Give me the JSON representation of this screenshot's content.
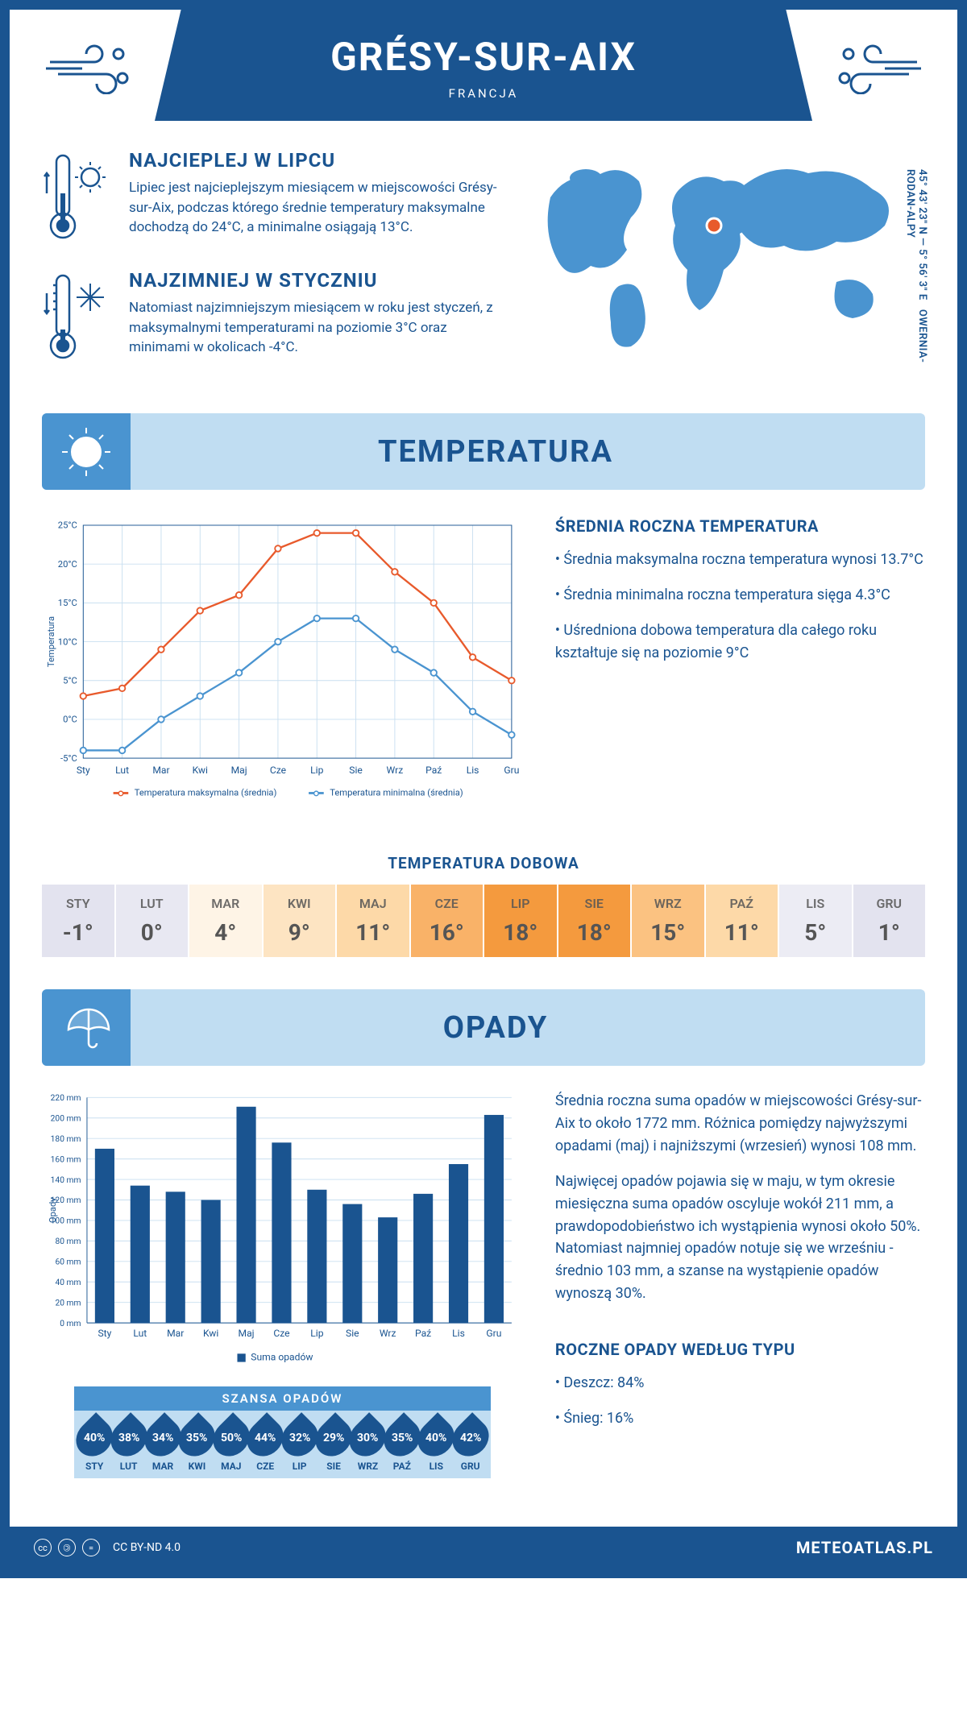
{
  "header": {
    "city": "GRÉSY-SUR-AIX",
    "country": "FRANCJA"
  },
  "coords": {
    "lat": "45° 43' 23\" N",
    "lon": "5° 56' 3\" E",
    "region": "OWERNIA-RODAN-ALPY"
  },
  "intro": {
    "hot": {
      "title": "NAJCIEPLEJ W LIPCU",
      "text": "Lipiec jest najcieplejszym miesiącem w miejscowości Grésy-sur-Aix, podczas którego średnie temperatury maksymalne dochodzą do 24°C, a minimalne osiągają 13°C."
    },
    "cold": {
      "title": "NAJZIMNIEJ W STYCZNIU",
      "text": "Natomiast najzimniejszym miesiącem w roku jest styczeń, z maksymalnymi temperaturami na poziomie 3°C oraz minimami w okolicach -4°C."
    }
  },
  "sections": {
    "temperature": "TEMPERATURA",
    "precip": "OPADY"
  },
  "temp_chart": {
    "type": "line",
    "months": [
      "Sty",
      "Lut",
      "Mar",
      "Kwi",
      "Maj",
      "Cze",
      "Lip",
      "Sie",
      "Wrz",
      "Paź",
      "Lis",
      "Gru"
    ],
    "tmax": [
      3,
      4,
      9,
      14,
      16,
      22,
      24,
      24,
      19,
      15,
      8,
      5
    ],
    "tmin": [
      -4,
      -4,
      0,
      3,
      6,
      10,
      13,
      13,
      9,
      6,
      1,
      -2
    ],
    "tmax_color": "#e85a2c",
    "tmin_color": "#4a94d0",
    "grid_color": "#c9dff0",
    "axis_color": "#1a5490",
    "ylabel": "Temperatura",
    "ylim": [
      -5,
      25
    ],
    "ytick_step": 5,
    "legend_max": "Temperatura maksymalna (średnia)",
    "legend_min": "Temperatura minimalna (średnia)",
    "title_fontsize": 12
  },
  "temp_summary": {
    "title": "ŚREDNIA ROCZNA TEMPERATURA",
    "lines": [
      "Średnia maksymalna roczna temperatura wynosi 13.7°C",
      "Średnia minimalna roczna temperatura sięga 4.3°C",
      "Uśredniona dobowa temperatura dla całego roku kształtuje się na poziomie 9°C"
    ]
  },
  "daily_temp": {
    "title": "TEMPERATURA DOBOWA",
    "months": [
      "STY",
      "LUT",
      "MAR",
      "KWI",
      "MAJ",
      "CZE",
      "LIP",
      "SIE",
      "WRZ",
      "PAŹ",
      "LIS",
      "GRU"
    ],
    "values": [
      "-1°",
      "0°",
      "4°",
      "9°",
      "11°",
      "16°",
      "18°",
      "18°",
      "15°",
      "11°",
      "5°",
      "1°"
    ],
    "bg_colors": [
      "#e3e3ef",
      "#e8e8f2",
      "#fef4e6",
      "#fde4c2",
      "#fdd9a8",
      "#f9b268",
      "#f49a3e",
      "#f49a3e",
      "#fbc281",
      "#fdd9a8",
      "#ececf4",
      "#e3e3ef"
    ],
    "text_color": "#555"
  },
  "precip_chart": {
    "type": "bar",
    "months": [
      "Sty",
      "Lut",
      "Mar",
      "Kwi",
      "Maj",
      "Cze",
      "Lip",
      "Sie",
      "Wrz",
      "Paź",
      "Lis",
      "Gru"
    ],
    "values": [
      170,
      134,
      128,
      120,
      211,
      176,
      130,
      116,
      103,
      126,
      155,
      203
    ],
    "bar_color": "#1a5490",
    "grid_color": "#c9dff0",
    "axis_color": "#1a5490",
    "ylabel": "Opady",
    "ylim": [
      0,
      220
    ],
    "ytick_step": 20,
    "legend": "Suma opadów",
    "bar_width": 0.55
  },
  "precip_text": {
    "p1": "Średnia roczna suma opadów w miejscowości Grésy-sur-Aix to około 1772 mm. Różnica pomiędzy najwyższymi opadami (maj) i najniższymi (wrzesień) wynosi 108 mm.",
    "p2": "Najwięcej opadów pojawia się w maju, w tym okresie miesięczna suma opadów oscyluje wokół 211 mm, a prawdopodobieństwo ich wystąpienia wynosi około 50%. Natomiast najmniej opadów notuje się we wrześniu - średnio 103 mm, a szanse na wystąpienie opadów wynoszą 30%."
  },
  "precip_chance": {
    "title": "SZANSA OPADÓW",
    "months": [
      "STY",
      "LUT",
      "MAR",
      "KWI",
      "MAJ",
      "CZE",
      "LIP",
      "SIE",
      "WRZ",
      "PAŹ",
      "LIS",
      "GRU"
    ],
    "values": [
      "40%",
      "38%",
      "34%",
      "35%",
      "50%",
      "44%",
      "32%",
      "29%",
      "30%",
      "35%",
      "40%",
      "42%"
    ]
  },
  "precip_type": {
    "title": "ROCZNE OPADY WEDŁUG TYPU",
    "lines": [
      "Deszcz: 84%",
      "Śnieg: 16%"
    ]
  },
  "footer": {
    "license": "CC BY-ND 4.0",
    "site": "METEOATLAS.PL"
  }
}
